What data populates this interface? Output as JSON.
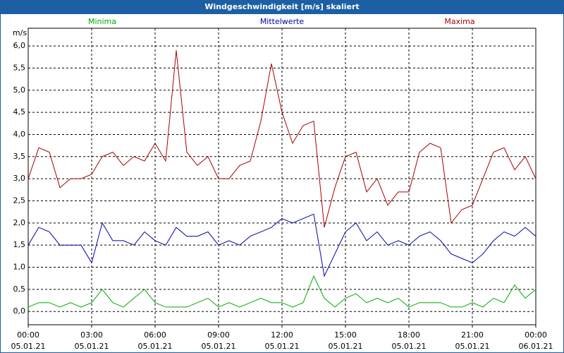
{
  "chart_data": {
    "type": "line",
    "title": "Windgeschwindigkeit [m/s] skaliert",
    "y_label": "m/s",
    "x": [
      0,
      0.5,
      1,
      1.5,
      2,
      2.5,
      3,
      3.5,
      4,
      4.5,
      5,
      5.5,
      6,
      6.5,
      7,
      7.5,
      8,
      8.5,
      9,
      9.5,
      10,
      10.5,
      11,
      11.5,
      12,
      12.5,
      13,
      13.5,
      14,
      14.5,
      15,
      15.5,
      16,
      16.5,
      17,
      17.5,
      18,
      18.5,
      19,
      19.5,
      20,
      20.5,
      21,
      21.5,
      22,
      22.5,
      23,
      23.5,
      24
    ],
    "series": [
      {
        "name": "Minima",
        "color": "#00aa00",
        "values": [
          0.1,
          0.2,
          0.2,
          0.1,
          0.2,
          0.1,
          0.2,
          0.5,
          0.2,
          0.1,
          0.3,
          0.5,
          0.2,
          0.1,
          0.1,
          0.1,
          0.2,
          0.3,
          0.1,
          0.2,
          0.1,
          0.2,
          0.3,
          0.2,
          0.2,
          0.1,
          0.2,
          0.8,
          0.3,
          0.1,
          0.3,
          0.4,
          0.2,
          0.3,
          0.2,
          0.3,
          0.1,
          0.2,
          0.2,
          0.2,
          0.1,
          0.1,
          0.2,
          0.1,
          0.3,
          0.2,
          0.6,
          0.3,
          0.5
        ]
      },
      {
        "name": "Mittelwerte",
        "color": "#0000aa",
        "values": [
          1.5,
          1.9,
          1.8,
          1.5,
          1.5,
          1.5,
          1.1,
          2.0,
          1.6,
          1.6,
          1.5,
          1.8,
          1.6,
          1.5,
          1.9,
          1.7,
          1.7,
          1.8,
          1.5,
          1.6,
          1.5,
          1.7,
          1.8,
          1.9,
          2.1,
          2.0,
          2.1,
          2.2,
          0.8,
          1.3,
          1.8,
          2.0,
          1.6,
          1.8,
          1.5,
          1.6,
          1.5,
          1.7,
          1.8,
          1.6,
          1.3,
          1.2,
          1.1,
          1.3,
          1.6,
          1.8,
          1.7,
          1.9,
          1.7
        ]
      },
      {
        "name": "Maxima",
        "color": "#aa0000",
        "values": [
          3.0,
          3.7,
          3.6,
          2.8,
          3.0,
          3.0,
          3.1,
          3.5,
          3.6,
          3.3,
          3.5,
          3.4,
          3.8,
          3.4,
          5.9,
          3.6,
          3.3,
          3.5,
          3.0,
          3.0,
          3.3,
          3.4,
          4.3,
          5.6,
          4.5,
          3.8,
          4.2,
          4.3,
          1.9,
          2.8,
          3.5,
          3.6,
          2.7,
          3.0,
          2.4,
          2.7,
          2.7,
          3.6,
          3.8,
          3.7,
          2.0,
          2.3,
          2.4,
          3.0,
          3.6,
          3.7,
          3.2,
          3.5,
          3.0
        ]
      }
    ],
    "xlim": [
      0,
      24
    ],
    "xticks": [
      {
        "value": 0,
        "label": "00:00",
        "date": "05.01.21"
      },
      {
        "value": 3,
        "label": "03:00",
        "date": "05.01.21"
      },
      {
        "value": 6,
        "label": "06:00",
        "date": "05.01.21"
      },
      {
        "value": 9,
        "label": "09:00",
        "date": "05.01.21"
      },
      {
        "value": 12,
        "label": "12:00",
        "date": "05.01.21"
      },
      {
        "value": 15,
        "label": "15:00",
        "date": "05.01.21"
      },
      {
        "value": 18,
        "label": "18:00",
        "date": "05.01.21"
      },
      {
        "value": 21,
        "label": "21:00",
        "date": "05.01.21"
      },
      {
        "value": 24,
        "label": "00:00",
        "date": "06.01.21"
      }
    ],
    "ylim": [
      -0.3,
      6.4
    ],
    "yticks": [
      {
        "value": 0,
        "label": "0,0"
      },
      {
        "value": 0.5,
        "label": "0,5"
      },
      {
        "value": 1,
        "label": "1,0"
      },
      {
        "value": 1.5,
        "label": "1,5"
      },
      {
        "value": 2,
        "label": "2,0"
      },
      {
        "value": 2.5,
        "label": "2,5"
      },
      {
        "value": 3,
        "label": "3,0"
      },
      {
        "value": 3.5,
        "label": "3,5"
      },
      {
        "value": 4,
        "label": "4,0"
      },
      {
        "value": 4.5,
        "label": "4,5"
      },
      {
        "value": 5,
        "label": "5,0"
      },
      {
        "value": 5.5,
        "label": "5,5"
      },
      {
        "value": 6,
        "label": "6,0"
      }
    ],
    "grid": true
  }
}
